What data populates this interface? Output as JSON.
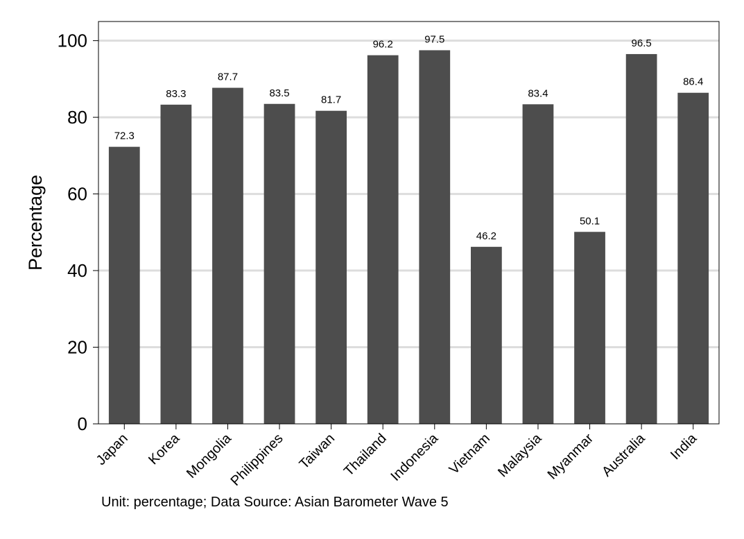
{
  "caption": "Unit: percentage; Data Source: Asian Barometer Wave 5",
  "chart_data": {
    "type": "bar",
    "title": "",
    "xlabel": "",
    "ylabel": "Percentage",
    "ylim": [
      0,
      105
    ],
    "yticks": [
      0,
      20,
      40,
      60,
      80,
      100
    ],
    "grid": true,
    "categories": [
      "Japan",
      "Korea",
      "Mongolia",
      "Philippines",
      "Taiwan",
      "Thailand",
      "Indonesia",
      "Vietnam",
      "Malaysia",
      "Myanmar",
      "Australia",
      "India"
    ],
    "values": [
      72.3,
      83.3,
      87.7,
      83.5,
      81.7,
      96.2,
      97.5,
      46.2,
      83.4,
      50.1,
      96.5,
      86.4
    ],
    "data_labels": [
      "72.3",
      "83.3",
      "87.7",
      "83.5",
      "81.7",
      "96.2",
      "97.5",
      "46.2",
      "83.4",
      "50.1",
      "96.5",
      "86.4"
    ],
    "bar_color": "#4d4d4d",
    "grid_color": "#dddddd"
  }
}
